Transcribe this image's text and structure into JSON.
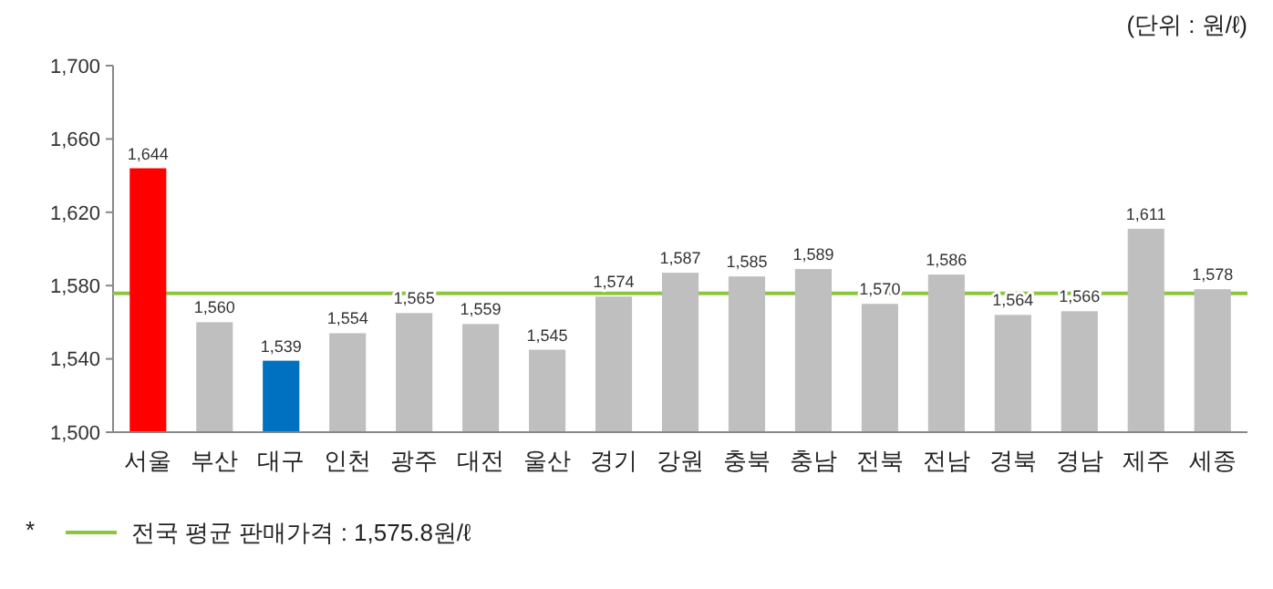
{
  "chart_data": {
    "type": "bar",
    "categories": [
      "서울",
      "부산",
      "대구",
      "인천",
      "광주",
      "대전",
      "울산",
      "경기",
      "강원",
      "충북",
      "충남",
      "전북",
      "전남",
      "경북",
      "경남",
      "제주",
      "세종"
    ],
    "values": [
      1644,
      1560,
      1539,
      1554,
      1565,
      1559,
      1545,
      1574,
      1587,
      1585,
      1589,
      1570,
      1586,
      1564,
      1566,
      1611,
      1578
    ],
    "colors": [
      "#ff0000",
      "#bfbfbf",
      "#0070c0",
      "#bfbfbf",
      "#bfbfbf",
      "#bfbfbf",
      "#bfbfbf",
      "#bfbfbf",
      "#bfbfbf",
      "#bfbfbf",
      "#bfbfbf",
      "#bfbfbf",
      "#bfbfbf",
      "#bfbfbf",
      "#bfbfbf",
      "#bfbfbf",
      "#bfbfbf"
    ],
    "ylim": [
      1500,
      1700
    ],
    "yticks": [
      {
        "value": 1500,
        "label": "1,500"
      },
      {
        "value": 1540,
        "label": "1,540"
      },
      {
        "value": 1580,
        "label": "1,580"
      },
      {
        "value": 1620,
        "label": "1,620"
      },
      {
        "value": 1660,
        "label": "1,660"
      },
      {
        "value": 1700,
        "label": "1,700"
      }
    ],
    "value_labels": [
      "1,644",
      "1,560",
      "1,539",
      "1,554",
      "1,565",
      "1,559",
      "1,545",
      "1,574",
      "1,587",
      "1,585",
      "1,589",
      "1,570",
      "1,586",
      "1,564",
      "1,566",
      "1,611",
      "1,578"
    ],
    "grid": false,
    "ref_lines": [
      {
        "axis": "y",
        "value": 1575.8,
        "label": "전국 평균 판매가격 : 1,575.8원/ℓ",
        "color": "#8cc63f"
      }
    ],
    "annotations": [
      "(단위 : 원/ℓ)",
      "*"
    ]
  }
}
